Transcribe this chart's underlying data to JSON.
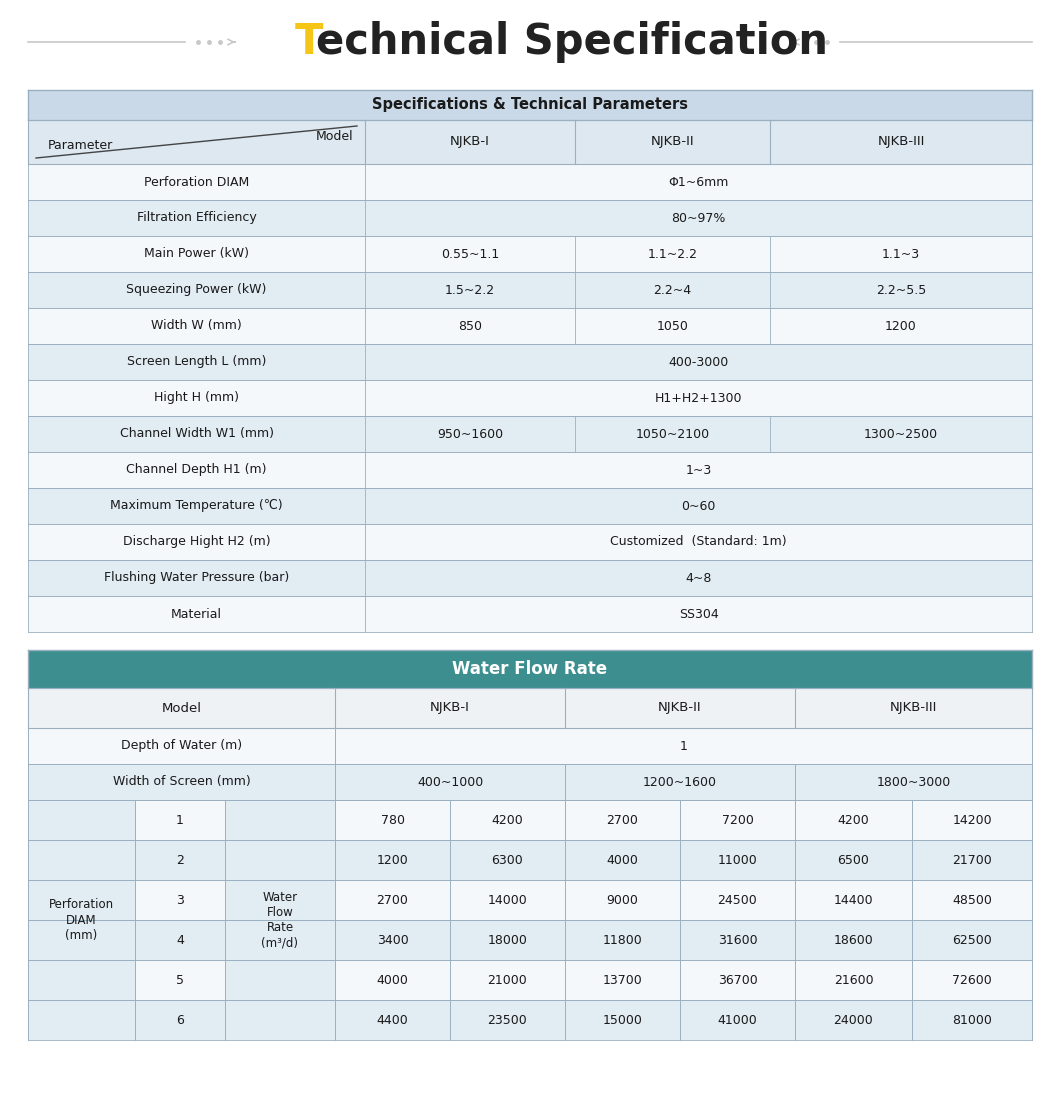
{
  "title_T": "T",
  "title_rest": "echnical Specification",
  "title_color_T": "#F5C518",
  "title_color_rest": "#222222",
  "t1_header_text": "Specifications & Technical Parameters",
  "t1_header_bg": "#c9d9e8",
  "t1_colhdr_bg": "#dde8f0",
  "t1_row_light": "#f5f8fb",
  "t1_row_dark": "#e2ecf3",
  "t1_border": "#9ab0c0",
  "t1_rows": [
    {
      "param": "Perforation DIAM",
      "v1": "Φ1~6mm",
      "v2": "",
      "v3": "",
      "span": true
    },
    {
      "param": "Filtration Efficiency",
      "v1": "80~97%",
      "v2": "",
      "v3": "",
      "span": true
    },
    {
      "param": "Main Power (kW)",
      "v1": "0.55~1.1",
      "v2": "1.1~2.2",
      "v3": "1.1~3",
      "span": false
    },
    {
      "param": "Squeezing Power (kW)",
      "v1": "1.5~2.2",
      "v2": "2.2~4",
      "v3": "2.2~5.5",
      "span": false
    },
    {
      "param": "Width W (mm)",
      "v1": "850",
      "v2": "1050",
      "v3": "1200",
      "span": false
    },
    {
      "param": "Screen Length L (mm)",
      "v1": "400-3000",
      "v2": "",
      "v3": "",
      "span": true
    },
    {
      "param": "Hight H (mm)",
      "v1": "H1+H2+1300",
      "v2": "",
      "v3": "",
      "span": true
    },
    {
      "param": "Channel Width W1 (mm)",
      "v1": "950~1600",
      "v2": "1050~2100",
      "v3": "1300~2500",
      "span": false
    },
    {
      "param": "Channel Depth H1 (m)",
      "v1": "1~3",
      "v2": "",
      "v3": "",
      "span": true
    },
    {
      "param": "Maximum Temperature (℃)",
      "v1": "0~60",
      "v2": "",
      "v3": "",
      "span": true
    },
    {
      "param": "Discharge Hight H2 (m)",
      "v1": "Customized  (Standard: 1m)",
      "v2": "",
      "v3": "",
      "span": true
    },
    {
      "param": "Flushing Water Pressure (bar)",
      "v1": "4~8",
      "v2": "",
      "v3": "",
      "span": true
    },
    {
      "param": "Material",
      "v1": "SS304",
      "v2": "",
      "v3": "",
      "span": true
    }
  ],
  "t2_header_text": "Water Flow Rate",
  "t2_header_bg": "#3d8f8f",
  "t2_header_text_color": "#ffffff",
  "t2_colhdr_bg": "#eef2f5",
  "t2_row_light": "#f5f8fb",
  "t2_row_dark": "#e2ecf3",
  "t2_border": "#9ab0c0",
  "t2_perf_rows": [
    [
      "1",
      "780",
      "4200",
      "2700",
      "7200",
      "4200",
      "14200"
    ],
    [
      "2",
      "1200",
      "6300",
      "4000",
      "11000",
      "6500",
      "21700"
    ],
    [
      "3",
      "2700",
      "14000",
      "9000",
      "24500",
      "14400",
      "48500"
    ],
    [
      "4",
      "3400",
      "18000",
      "11800",
      "31600",
      "18600",
      "62500"
    ],
    [
      "5",
      "4000",
      "21000",
      "13700",
      "36700",
      "21600",
      "72600"
    ],
    [
      "6",
      "4400",
      "23500",
      "15000",
      "41000",
      "24000",
      "81000"
    ]
  ]
}
